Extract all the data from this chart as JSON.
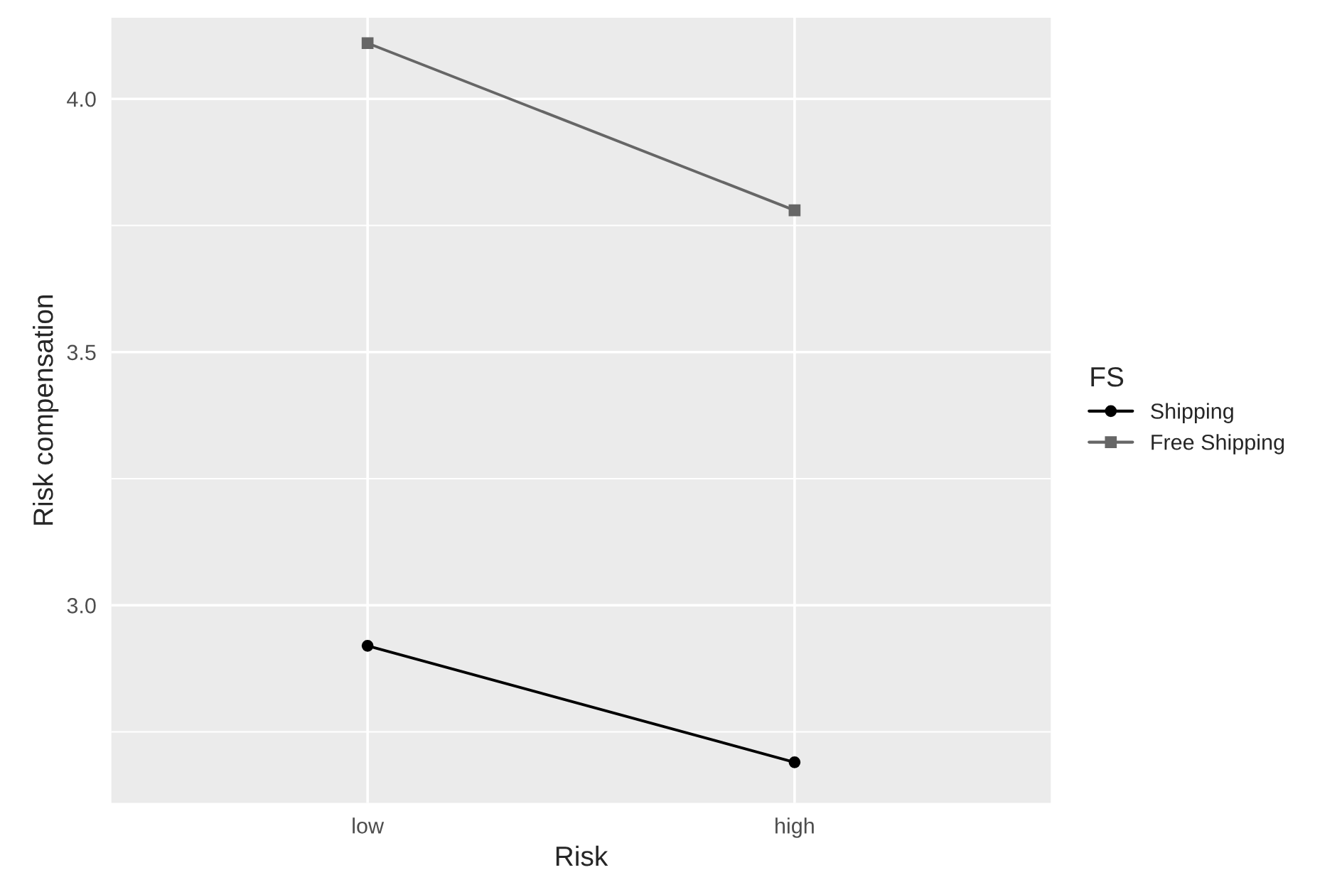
{
  "chart_data": {
    "type": "line",
    "xlabel": "Risk",
    "ylabel": "Risk compensation",
    "legend_title": "FS",
    "categories": [
      "low",
      "high"
    ],
    "series": [
      {
        "name": "Shipping",
        "color": "#000000",
        "marker": "circle",
        "values": [
          2.92,
          2.69
        ]
      },
      {
        "name": "Free Shipping",
        "color": "#666666",
        "marker": "square",
        "values": [
          4.11,
          3.78
        ]
      }
    ],
    "ylim": [
      2.61,
      4.16
    ],
    "yticks": [
      {
        "value": 2.75,
        "label": null
      },
      {
        "value": 3.0,
        "label": "3.0"
      },
      {
        "value": 3.25,
        "label": null
      },
      3.5,
      {
        "value": 3.75,
        "label": null
      },
      {
        "value": 4.0,
        "label": "4.0"
      }
    ],
    "grid": true,
    "legend": "right",
    "line_style": "solid"
  }
}
